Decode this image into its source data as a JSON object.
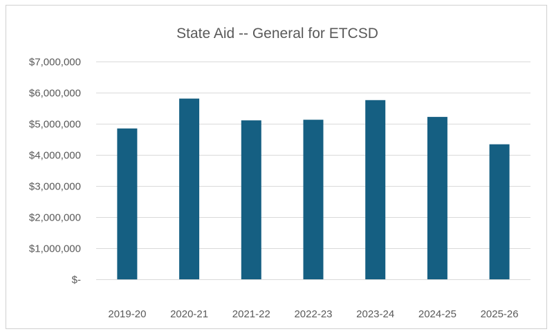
{
  "chart_data": {
    "type": "bar",
    "title": "State Aid -- General for ETCSD",
    "xlabel": "",
    "ylabel": "",
    "categories": [
      "2019-20",
      "2020-21",
      "2021-22",
      "2022-23",
      "2023-24",
      "2024-25",
      "2025-26"
    ],
    "values": [
      4850000,
      5810000,
      5110000,
      5130000,
      5760000,
      5220000,
      4340000
    ],
    "ylim": [
      0,
      7000000
    ],
    "y_ticks": [
      0,
      1000000,
      2000000,
      3000000,
      4000000,
      5000000,
      6000000,
      7000000
    ],
    "y_tick_labels": [
      "$-",
      "$1,000,000",
      "$2,000,000",
      "$3,000,000",
      "$4,000,000",
      "$5,000,000",
      "$6,000,000",
      "$7,000,000"
    ],
    "grid": true,
    "legend": "none",
    "bar_color": "#155f82"
  }
}
